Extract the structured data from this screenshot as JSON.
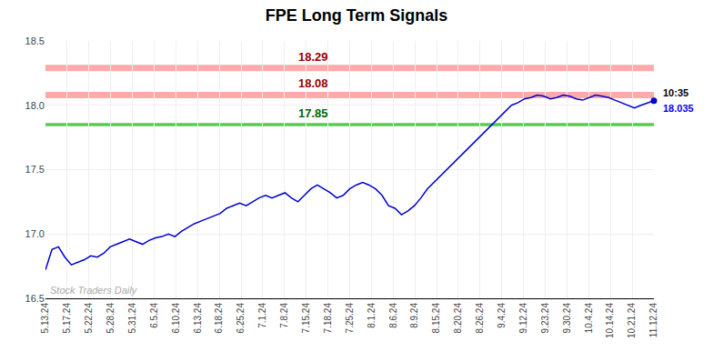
{
  "chart_data": {
    "type": "line",
    "title": "FPE Long Term Signals",
    "color": "#0000cc",
    "grid": true,
    "values": [
      16.72,
      16.88,
      16.9,
      16.82,
      16.76,
      16.78,
      16.8,
      16.83,
      16.82,
      16.85,
      16.9,
      16.92,
      16.94,
      16.96,
      16.94,
      16.92,
      16.95,
      16.97,
      16.98,
      17.0,
      16.98,
      17.02,
      17.05,
      17.08,
      17.1,
      17.12,
      17.14,
      17.16,
      17.2,
      17.22,
      17.24,
      17.22,
      17.25,
      17.28,
      17.3,
      17.28,
      17.3,
      17.32,
      17.28,
      17.25,
      17.3,
      17.35,
      17.38,
      17.35,
      17.32,
      17.28,
      17.3,
      17.35,
      17.38,
      17.4,
      17.38,
      17.35,
      17.3,
      17.22,
      17.2,
      17.15,
      17.18,
      17.22,
      17.28,
      17.35,
      17.4,
      17.45,
      17.5,
      17.55,
      17.6,
      17.65,
      17.7,
      17.75,
      17.8,
      17.85,
      17.9,
      17.95,
      18.0,
      18.02,
      18.05,
      18.06,
      18.08,
      18.07,
      18.05,
      18.06,
      18.08,
      18.07,
      18.05,
      18.04,
      18.06,
      18.08,
      18.07,
      18.06,
      18.04,
      18.02,
      18.0,
      17.98,
      18.0,
      18.02,
      18.035
    ],
    "xlim": [
      0,
      28
    ],
    "xticks": [
      {
        "value": 0,
        "label": "5.13.24"
      },
      {
        "value": 1,
        "label": "5.17.24"
      },
      {
        "value": 2,
        "label": "5.22.24"
      },
      {
        "value": 3,
        "label": "5.28.24"
      },
      {
        "value": 4,
        "label": "5.31.24"
      },
      {
        "value": 5,
        "label": "6.5.24"
      },
      {
        "value": 6,
        "label": "6.10.24"
      },
      {
        "value": 7,
        "label": "6.13.24"
      },
      {
        "value": 8,
        "label": "6.18.24"
      },
      {
        "value": 9,
        "label": "6.25.24"
      },
      {
        "value": 10,
        "label": "7.1.24"
      },
      {
        "value": 11,
        "label": "7.8.24"
      },
      {
        "value": 12,
        "label": "7.15.24"
      },
      {
        "value": 13,
        "label": "7.18.24"
      },
      {
        "value": 14,
        "label": "7.25.24"
      },
      {
        "value": 15,
        "label": "8.1.24"
      },
      {
        "value": 16,
        "label": "8.6.24"
      },
      {
        "value": 17,
        "label": "8.9.24"
      },
      {
        "value": 18,
        "label": "8.15.24"
      },
      {
        "value": 19,
        "label": "8.20.24"
      },
      {
        "value": 20,
        "label": "8.26.24"
      },
      {
        "value": 21,
        "label": "9.4.24"
      },
      {
        "value": 22,
        "label": "9.12.24"
      },
      {
        "value": 23,
        "label": "9.23.24"
      },
      {
        "value": 24,
        "label": "9.30.24"
      },
      {
        "value": 25,
        "label": "10.4.24"
      },
      {
        "value": 26,
        "label": "10.14.24"
      },
      {
        "value": 27,
        "label": "10.21.24"
      },
      {
        "value": 28,
        "label": "11.12.24"
      }
    ],
    "ylim": [
      16.5,
      18.5
    ],
    "yticks": [
      16.5,
      {
        "value": 17.0,
        "label": "17.0"
      },
      17.5,
      {
        "value": 18.0,
        "label": "18.0"
      },
      18.5
    ],
    "hlines": [
      {
        "value": 18.29,
        "label": "18.29",
        "color": "#ffaaaa",
        "label_color": "#990000"
      },
      {
        "value": 18.08,
        "label": "18.08",
        "color": "#ffaaaa",
        "label_color": "#990000"
      },
      {
        "value": 17.85,
        "label": "17.85",
        "color": "#55cc55",
        "label_color": "#006600"
      }
    ],
    "end_label": {
      "time": "10:35",
      "time_color": "#000000",
      "price": "18.035",
      "price_color": "#0000ff"
    },
    "watermark": "Stock Traders Daily",
    "watermark_color": "#aaaaaa"
  }
}
